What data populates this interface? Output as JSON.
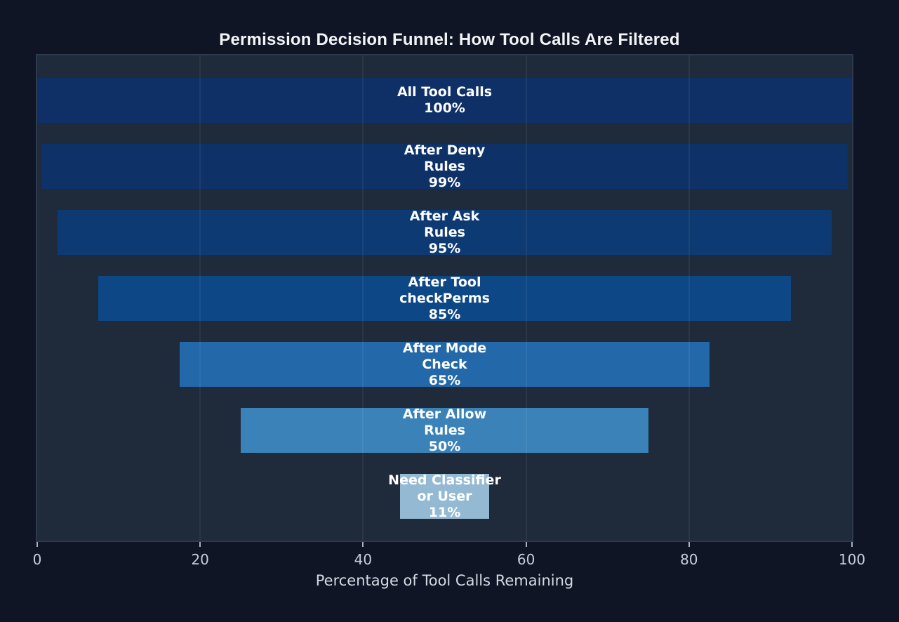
{
  "title": "Permission Decision Funnel: How Tool Calls Are Filtered",
  "chart_data": {
    "type": "bar",
    "subtype": "horizontal-centered-funnel",
    "title": "Permission Decision Funnel: How Tool Calls Are Filtered",
    "xlabel": "Percentage of Tool Calls Remaining",
    "ylabel": "",
    "xlim": [
      0,
      100
    ],
    "x_ticks": [
      0,
      20,
      40,
      60,
      80,
      100
    ],
    "grid": "vertical-at-ticks",
    "legend": "none",
    "stages": [
      {
        "label": "All Tool Calls",
        "value_pct": 100,
        "bar_text": [
          "All Tool Calls",
          "100%"
        ],
        "color": "#0e3067"
      },
      {
        "label": "After Deny Rules",
        "value_pct": 99,
        "bar_text": [
          "After Deny",
          "Rules",
          "99%"
        ],
        "color": "#0e3168"
      },
      {
        "label": "After Ask Rules",
        "value_pct": 95,
        "bar_text": [
          "After Ask",
          "Rules",
          "95%"
        ],
        "color": "#0d3a72"
      },
      {
        "label": "After Tool checkPerms",
        "value_pct": 85,
        "bar_text": [
          "After Tool",
          "checkPerms",
          "85%"
        ],
        "color": "#0d4786"
      },
      {
        "label": "After Mode Check",
        "value_pct": 65,
        "bar_text": [
          "After Mode",
          "Check",
          "65%"
        ],
        "color": "#2368a9"
      },
      {
        "label": "After Allow Rules",
        "value_pct": 50,
        "bar_text": [
          "After Allow",
          "Rules",
          "50%"
        ],
        "color": "#3b82b8"
      },
      {
        "label": "Need Classifier or User",
        "value_pct": 11,
        "bar_text": [
          "Need Classifier",
          "or User",
          "11%"
        ],
        "color": "#94b9d2"
      }
    ],
    "colors": {
      "background": "#0f1525",
      "plot_background": "#1f2a3a",
      "plot_border": "#2d3a4d",
      "bar_label_text": "#ffffff",
      "tick_label": "#c7ceda",
      "axis_label": "#d5dae3",
      "title": "#f2f4f6"
    }
  }
}
